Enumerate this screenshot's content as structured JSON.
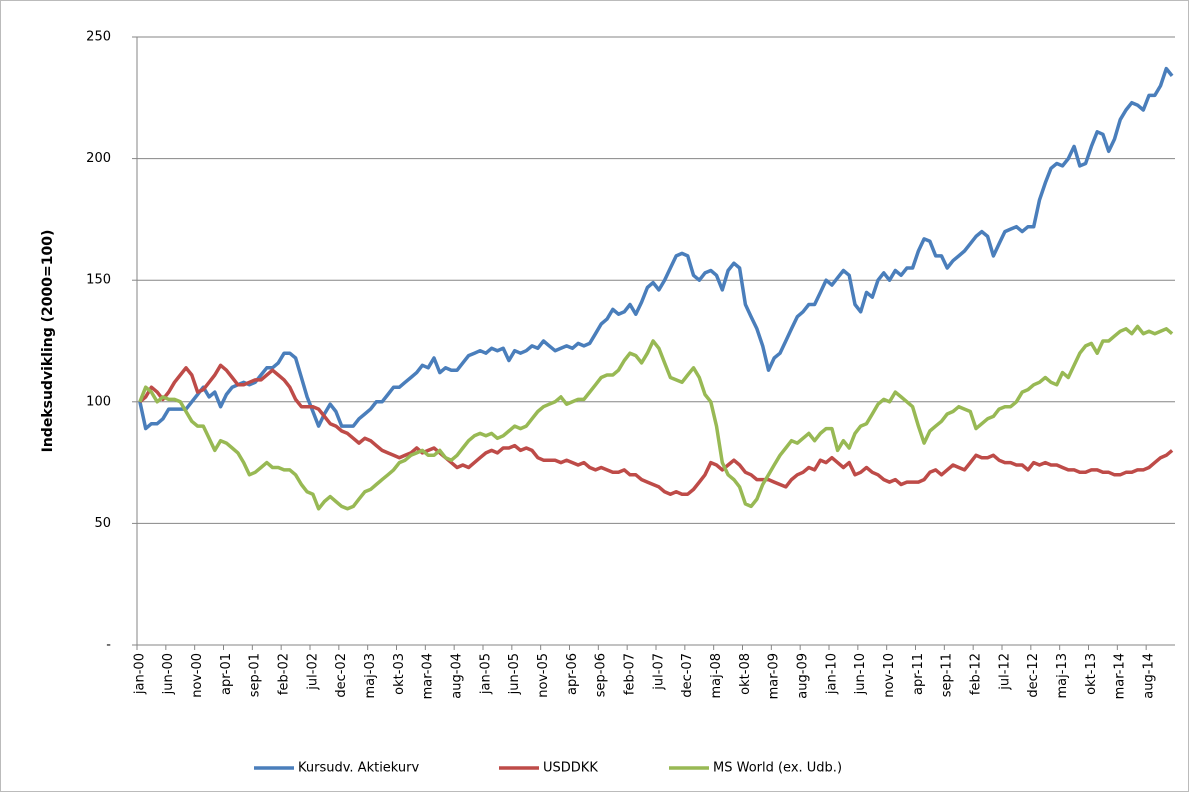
{
  "chart_data": {
    "type": "line",
    "ylabel": "Indeksudvikling (2000=100)",
    "categories": [
      "jan-00",
      null,
      null,
      null,
      null,
      "jun-00",
      null,
      null,
      null,
      null,
      "nov-00",
      null,
      null,
      null,
      null,
      "apr-01",
      null,
      null,
      null,
      null,
      "sep-01",
      null,
      null,
      null,
      null,
      "feb-02",
      null,
      null,
      null,
      null,
      "jul-02",
      null,
      null,
      null,
      null,
      "dec-02",
      null,
      null,
      null,
      null,
      "maj-03",
      null,
      null,
      null,
      null,
      "okt-03",
      null,
      null,
      null,
      null,
      "mar-04",
      null,
      null,
      null,
      null,
      "aug-04",
      null,
      null,
      null,
      null,
      "jan-05",
      null,
      null,
      null,
      null,
      "jun-05",
      null,
      null,
      null,
      null,
      "nov-05",
      null,
      null,
      null,
      null,
      "apr-06",
      null,
      null,
      null,
      null,
      "sep-06",
      null,
      null,
      null,
      null,
      "feb-07",
      null,
      null,
      null,
      null,
      "jul-07",
      null,
      null,
      null,
      null,
      "dec-07",
      null,
      null,
      null,
      null,
      "maj-08",
      null,
      null,
      null,
      null,
      "okt-08",
      null,
      null,
      null,
      null,
      "mar-09",
      null,
      null,
      null,
      null,
      "aug-09",
      null,
      null,
      null,
      null,
      "jan-10",
      null,
      null,
      null,
      null,
      "jun-10",
      null,
      null,
      null,
      null,
      "nov-10",
      null,
      null,
      null,
      null,
      "apr-11",
      null,
      null,
      null,
      null,
      "sep-11",
      null,
      null,
      null,
      null,
      "feb-12",
      null,
      null,
      null,
      null,
      "jul-12",
      null,
      null,
      null,
      null,
      "dec-12",
      null,
      null,
      null,
      null,
      "maj-13",
      null,
      null,
      null,
      null,
      "okt-13",
      null,
      null,
      null,
      null,
      "mar-14",
      null,
      null,
      null,
      null,
      "aug-14",
      null,
      null,
      null,
      null
    ],
    "series": [
      {
        "name": "Kursudv. Aktiekurv",
        "color": "#4a7ebb",
        "values": [
          100,
          89,
          91,
          91,
          93,
          97,
          97,
          97,
          97,
          100,
          103,
          106,
          102,
          104,
          98,
          103,
          106,
          107,
          108,
          107,
          108,
          111,
          114,
          114,
          116,
          120,
          120,
          118,
          110,
          102,
          96,
          90,
          95,
          99,
          96,
          90,
          90,
          90,
          93,
          95,
          97,
          100,
          100,
          103,
          106,
          106,
          108,
          110,
          112,
          115,
          114,
          118,
          112,
          114,
          113,
          113,
          116,
          119,
          120,
          121,
          120,
          122,
          121,
          122,
          117,
          121,
          120,
          121,
          123,
          122,
          125,
          123,
          121,
          122,
          123,
          122,
          124,
          123,
          124,
          128,
          132,
          134,
          138,
          136,
          137,
          140,
          136,
          141,
          147,
          149,
          146,
          150,
          155,
          160,
          161,
          160,
          152,
          150,
          153,
          154,
          152,
          146,
          154,
          157,
          155,
          140,
          135,
          130,
          123,
          113,
          118,
          120,
          125,
          130,
          135,
          137,
          140,
          140,
          145,
          150,
          148,
          151,
          154,
          152,
          140,
          137,
          145,
          143,
          150,
          153,
          150,
          154,
          152,
          155,
          155,
          162,
          167,
          166,
          160,
          160,
          155,
          158,
          160,
          162,
          165,
          168,
          170,
          168,
          160,
          165,
          170,
          171,
          172,
          170,
          172,
          172,
          183,
          190,
          196,
          198,
          197,
          200,
          205,
          197,
          198,
          205,
          211,
          210,
          203,
          208,
          216,
          220,
          223,
          222,
          220,
          226,
          226,
          230,
          237,
          234
        ]
      },
      {
        "name": "USDDKK",
        "color": "#be4b48",
        "values": [
          100,
          102,
          106,
          104,
          101,
          104,
          108,
          111,
          114,
          111,
          104,
          105,
          108,
          111,
          115,
          113,
          110,
          107,
          107,
          108,
          109,
          109,
          111,
          113,
          111,
          109,
          106,
          101,
          98,
          98,
          98,
          97,
          94,
          91,
          90,
          88,
          87,
          85,
          83,
          85,
          84,
          82,
          80,
          79,
          78,
          77,
          78,
          79,
          81,
          79,
          80,
          81,
          79,
          77,
          75,
          73,
          74,
          73,
          75,
          77,
          79,
          80,
          79,
          81,
          81,
          82,
          80,
          81,
          80,
          77,
          76,
          76,
          76,
          75,
          76,
          75,
          74,
          75,
          73,
          72,
          73,
          72,
          71,
          71,
          72,
          70,
          70,
          68,
          67,
          66,
          65,
          63,
          62,
          63,
          62,
          62,
          64,
          67,
          70,
          75,
          74,
          72,
          74,
          76,
          74,
          71,
          70,
          68,
          68,
          68,
          67,
          66,
          65,
          68,
          70,
          71,
          73,
          72,
          76,
          75,
          77,
          75,
          73,
          75,
          70,
          71,
          73,
          71,
          70,
          68,
          67,
          68,
          66,
          67,
          67,
          67,
          68,
          71,
          72,
          70,
          72,
          74,
          73,
          72,
          75,
          78,
          77,
          77,
          78,
          76,
          75,
          75,
          74,
          74,
          72,
          75,
          74,
          75,
          74,
          74,
          73,
          72,
          72,
          71,
          71,
          72,
          72,
          71,
          71,
          70,
          70,
          71,
          71,
          72,
          72,
          73,
          75,
          77,
          78,
          80
        ]
      },
      {
        "name": "MS World (ex. Udb.)",
        "color": "#98b954",
        "values": [
          100,
          106,
          104,
          100,
          102,
          101,
          101,
          100,
          96,
          92,
          90,
          90,
          85,
          80,
          84,
          83,
          81,
          79,
          75,
          70,
          71,
          73,
          75,
          73,
          73,
          72,
          72,
          70,
          66,
          63,
          62,
          56,
          59,
          61,
          59,
          57,
          56,
          57,
          60,
          63,
          64,
          66,
          68,
          70,
          72,
          75,
          76,
          78,
          79,
          80,
          78,
          78,
          80,
          77,
          76,
          78,
          81,
          84,
          86,
          87,
          86,
          87,
          85,
          86,
          88,
          90,
          89,
          90,
          93,
          96,
          98,
          99,
          100,
          102,
          99,
          100,
          101,
          101,
          104,
          107,
          110,
          111,
          111,
          113,
          117,
          120,
          119,
          116,
          120,
          125,
          122,
          116,
          110,
          109,
          108,
          111,
          114,
          110,
          103,
          100,
          90,
          75,
          70,
          68,
          65,
          58,
          57,
          60,
          66,
          70,
          74,
          78,
          81,
          84,
          83,
          85,
          87,
          84,
          87,
          89,
          89,
          80,
          84,
          81,
          87,
          90,
          91,
          95,
          99,
          101,
          100,
          104,
          102,
          100,
          98,
          90,
          83,
          88,
          90,
          92,
          95,
          96,
          98,
          97,
          96,
          89,
          91,
          93,
          94,
          97,
          98,
          98,
          100,
          104,
          105,
          107,
          108,
          110,
          108,
          107,
          112,
          110,
          115,
          120,
          123,
          124,
          120,
          125,
          125,
          127,
          129,
          130,
          128,
          131,
          128,
          129,
          128,
          129,
          130,
          128
        ]
      }
    ],
    "ylim": [
      0,
      250
    ],
    "yticks": [
      {
        "value": 0,
        "label": "-"
      },
      50,
      100,
      150,
      200,
      250
    ],
    "grid": true,
    "legend": "bottom"
  }
}
